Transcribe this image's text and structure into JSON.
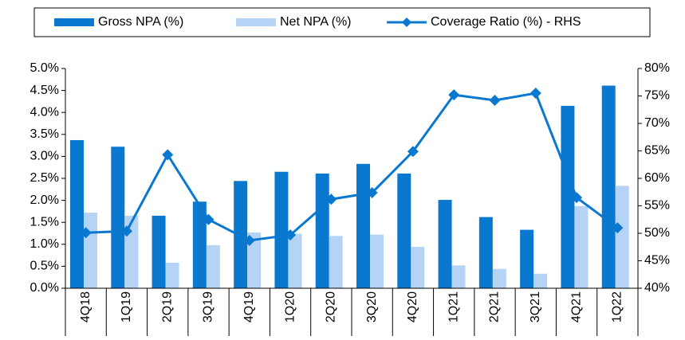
{
  "chart_data": {
    "type": "bar-line",
    "categories": [
      "4Q18",
      "1Q19",
      "2Q19",
      "3Q19",
      "4Q19",
      "1Q20",
      "2Q20",
      "3Q20",
      "4Q20",
      "1Q21",
      "2Q21",
      "3Q21",
      "4Q21",
      "1Q22"
    ],
    "series": [
      {
        "name": "Gross NPA (%)",
        "type": "bar",
        "color": "#0b78d0",
        "values": [
          3.37,
          3.22,
          1.65,
          1.97,
          2.44,
          2.65,
          2.61,
          2.83,
          2.61,
          2.01,
          1.62,
          1.33,
          4.15,
          4.61
        ]
      },
      {
        "name": "Net NPA (%)",
        "type": "bar",
        "color": "#b5d3f5",
        "values": [
          1.72,
          1.65,
          0.58,
          0.98,
          1.27,
          1.24,
          1.19,
          1.22,
          0.94,
          0.52,
          0.44,
          0.33,
          1.87,
          2.33
        ]
      },
      {
        "name": "Coverage Ratio (%) - RHS",
        "type": "line",
        "axis": "y2",
        "color": "#0b78d0",
        "values": [
          50.1,
          50.4,
          64.3,
          52.5,
          48.7,
          49.7,
          56.2,
          57.4,
          64.9,
          75.2,
          74.2,
          75.5,
          56.5,
          51.0
        ]
      }
    ],
    "ylim": [
      0,
      5
    ],
    "yticks": [
      {
        "value": 0,
        "label": "0.0%"
      },
      {
        "value": 0.5,
        "label": "0.5%"
      },
      {
        "value": 1,
        "label": "1.0%"
      },
      {
        "value": 1.5,
        "label": "1.5%"
      },
      {
        "value": 2,
        "label": "2.0%"
      },
      {
        "value": 2.5,
        "label": "2.5%"
      },
      {
        "value": 3,
        "label": "3.0%"
      },
      {
        "value": 3.5,
        "label": "3.5%"
      },
      {
        "value": 4,
        "label": "4.0%"
      },
      {
        "value": 4.5,
        "label": "4.5%"
      },
      {
        "value": 5,
        "label": "5.0%"
      }
    ],
    "y2lim": [
      40,
      80
    ],
    "y2ticks": [
      {
        "value": 40,
        "label": "40%"
      },
      {
        "value": 45,
        "label": "45%"
      },
      {
        "value": 50,
        "label": "50%"
      },
      {
        "value": 55,
        "label": "55%"
      },
      {
        "value": 60,
        "label": "60%"
      },
      {
        "value": 65,
        "label": "65%"
      },
      {
        "value": 70,
        "label": "70%"
      },
      {
        "value": 75,
        "label": "75%"
      },
      {
        "value": 80,
        "label": "80%"
      }
    ],
    "legend": "top"
  }
}
